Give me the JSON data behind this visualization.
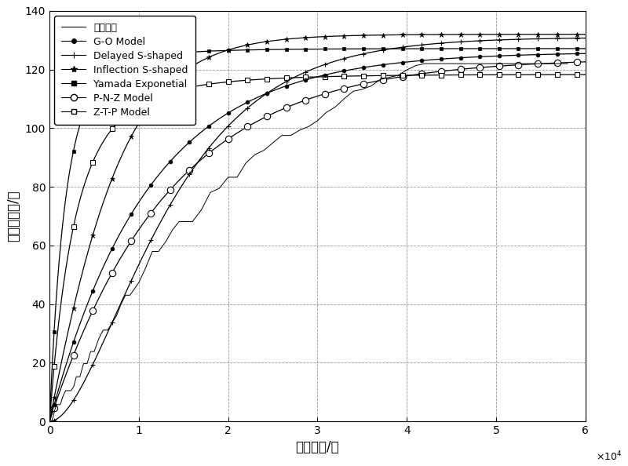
{
  "title": "",
  "xlabel": "累积时间/秒",
  "ylabel": "累积失效数/个",
  "xlim": [
    0,
    60000
  ],
  "ylim": [
    0,
    140
  ],
  "yticks": [
    0,
    20,
    40,
    60,
    80,
    100,
    120,
    140
  ],
  "xticks": [
    0,
    10000,
    20000,
    30000,
    40000,
    50000,
    60000
  ],
  "xtick_labels": [
    "0",
    "1",
    "2",
    "3",
    "4",
    "5",
    "6"
  ],
  "legend_entries": [
    "实际数据",
    "G-O Model",
    "Delayed S-shaped",
    "Inflection S-shaped",
    "Yamada Exponetial",
    "P-N-Z Model",
    "Z-T-P Model"
  ],
  "background_color": "#ffffff"
}
